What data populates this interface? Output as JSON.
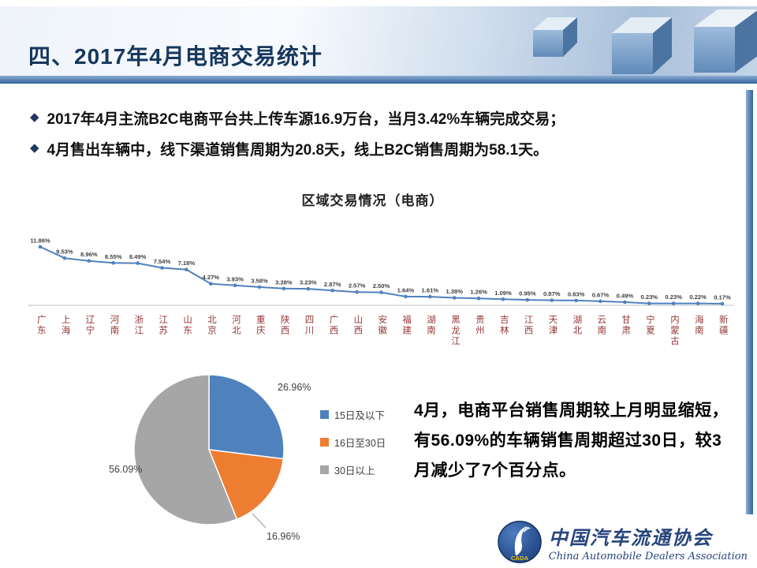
{
  "header": {
    "title": "四、2017年4月电商交易统计"
  },
  "bullet_marker": "◆",
  "bullets": [
    "2017年4月主流B2C电商平台共上传车源16.9万台，当月3.42%车辆完成交易；",
    "4月售出车辆中，线下渠道销售周期为20.8天，线上B2C销售周期为58.1天。"
  ],
  "chart_data": [
    {
      "type": "line",
      "title": "区域交易情况（电商）",
      "categories": [
        "广东",
        "上海",
        "辽宁",
        "河南",
        "浙江",
        "江苏",
        "山东",
        "北京",
        "河北",
        "重庆",
        "陕西",
        "四川",
        "广西",
        "山西",
        "安徽",
        "福建",
        "湖南",
        "黑龙江",
        "贵州",
        "吉林",
        "江西",
        "天津",
        "湖北",
        "云南",
        "甘肃",
        "宁夏",
        "内蒙古",
        "海南",
        "新疆"
      ],
      "values": [
        11.86,
        9.53,
        8.96,
        8.55,
        8.49,
        7.54,
        7.18,
        4.27,
        3.93,
        3.58,
        3.28,
        3.23,
        2.87,
        2.57,
        2.5,
        1.64,
        1.61,
        1.38,
        1.26,
        1.09,
        0.95,
        0.87,
        0.83,
        0.67,
        0.49,
        0.23,
        0.23,
        0.22,
        0.17
      ],
      "labels": [
        "11.86%",
        "9.53%",
        "8.96%",
        "8.55%",
        "8.49%",
        "7.54%",
        "7.18%",
        "4.27%",
        "3.93%",
        "3.58%",
        "3.28%",
        "3.23%",
        "2.87%",
        "2.57%",
        "2.50%",
        "1.64%",
        "1.61%",
        "1.38%",
        "1.26%",
        "1.09%",
        "0.95%",
        "0.87%",
        "0.83%",
        "0.67%",
        "0.49%",
        "0.23%",
        "0.23%",
        "0.22%",
        "0.17%"
      ],
      "line_color": "#4f81bd",
      "axis_color": "#bfbfbf",
      "label_color": "#404040",
      "category_color": "#953735",
      "ylim": [
        0,
        12
      ],
      "grid": false,
      "legend_position": "none"
    },
    {
      "type": "pie",
      "slices": [
        {
          "label": "15日及以下",
          "value": 26.96,
          "display": "26.96%",
          "color": "#4f81bd"
        },
        {
          "label": "16日至30日",
          "value": 16.96,
          "display": "16.96%",
          "color": "#ed7d31"
        },
        {
          "label": "30日以上",
          "value": 56.09,
          "display": "56.09%",
          "color": "#a6a6a6"
        }
      ],
      "legend_position": "right",
      "start_angle_deg": -90
    }
  ],
  "note": "4月，电商平台销售周期较上月明显缩短，有56.09%的车辆销售周期超过30日，较3月减少了7个百分点。",
  "footer": {
    "org_cn": "中国汽车流通协会",
    "org_en": "China Automobile Dealers Association",
    "logo_text": "CADA"
  }
}
